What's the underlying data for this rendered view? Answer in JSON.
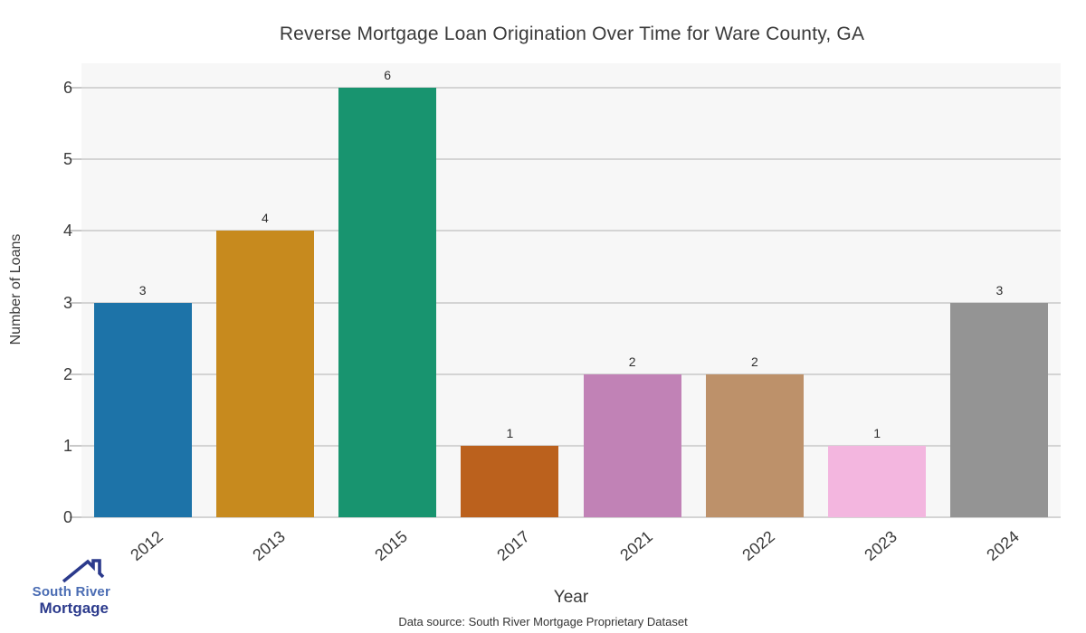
{
  "chart_data": {
    "type": "bar",
    "title": "Reverse Mortgage Loan Origination Over Time for Ware County, GA",
    "xlabel": "Year",
    "ylabel": "Number of Loans",
    "categories": [
      "2012",
      "2013",
      "2015",
      "2017",
      "2021",
      "2022",
      "2023",
      "2024"
    ],
    "values": [
      3,
      4,
      6,
      1,
      2,
      2,
      1,
      3
    ],
    "bar_colors": [
      "#1d73a8",
      "#c78a1e",
      "#18946f",
      "#bb611d",
      "#c182b6",
      "#bd916a",
      "#f3b6df",
      "#949494"
    ],
    "yticks": [
      0,
      1,
      2,
      3,
      4,
      5,
      6
    ],
    "ylim": [
      0,
      6
    ],
    "grid": true,
    "legend": "none",
    "value_labels_shown": true,
    "plot_background": "#f7f7f7",
    "grid_color": "#d4d4d4",
    "text_color": "#3a3a3a"
  },
  "footer": {
    "data_source": "Data source: South River Mortgage Proprietary Dataset"
  },
  "logo": {
    "line1": "South River",
    "line2": "Mortgage",
    "line1_color": "#4a6cb3",
    "line2_color": "#2b3a8c",
    "icon_color": "#2b3a8c"
  }
}
